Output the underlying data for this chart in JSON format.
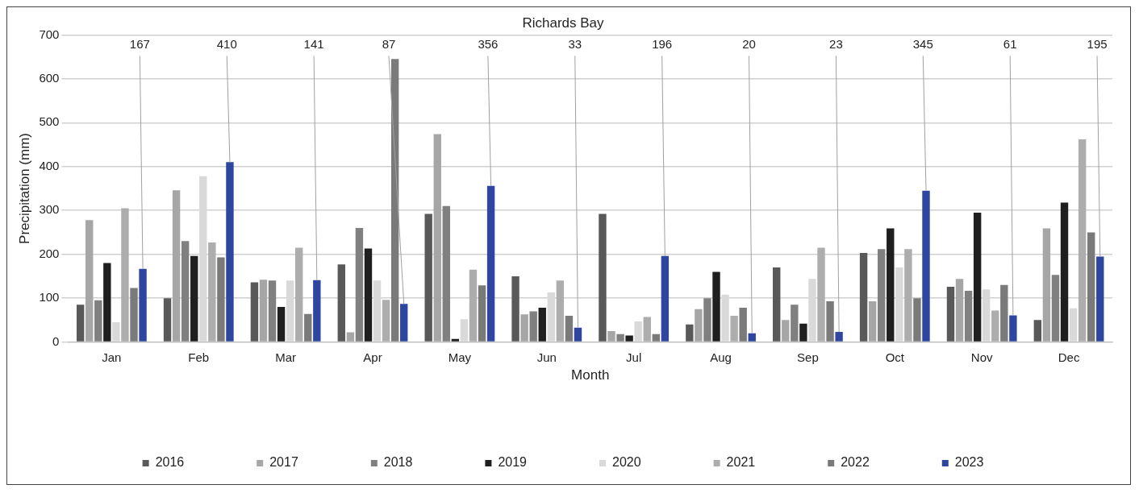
{
  "chart_data": {
    "type": "bar",
    "title": "Richards Bay",
    "xlabel": "Month",
    "ylabel": "Precipitation (mm)",
    "categories": [
      "Jan",
      "Feb",
      "Mar",
      "Apr",
      "May",
      "Jun",
      "Jul",
      "Aug",
      "Sep",
      "Oct",
      "Nov",
      "Dec"
    ],
    "series": [
      {
        "name": "2016",
        "color": "#595959",
        "values": [
          85,
          100,
          136,
          177,
          292,
          150,
          292,
          40,
          170,
          203,
          126,
          50
        ]
      },
      {
        "name": "2017",
        "color": "#a6a6a6",
        "values": [
          278,
          346,
          142,
          22,
          474,
          63,
          25,
          75,
          50,
          93,
          144,
          259
        ]
      },
      {
        "name": "2018",
        "color": "#808080",
        "values": [
          95,
          230,
          140,
          260,
          310,
          70,
          18,
          100,
          85,
          212,
          117,
          153
        ]
      },
      {
        "name": "2019",
        "color": "#1f1f1f",
        "values": [
          180,
          196,
          80,
          213,
          7,
          78,
          15,
          160,
          42,
          259,
          295,
          318
        ]
      },
      {
        "name": "2020",
        "color": "#d9d9d9",
        "values": [
          45,
          378,
          140,
          140,
          52,
          113,
          47,
          108,
          144,
          170,
          120,
          77
        ]
      },
      {
        "name": "2021",
        "color": "#adadad",
        "values": [
          305,
          227,
          215,
          96,
          165,
          140,
          57,
          60,
          215,
          212,
          72,
          462
        ]
      },
      {
        "name": "2022",
        "color": "#7a7a7a",
        "values": [
          123,
          193,
          64,
          645,
          129,
          60,
          18,
          78,
          93,
          100,
          130,
          250
        ]
      },
      {
        "name": "2023",
        "color": "#2e46a0",
        "values": [
          167,
          410,
          141,
          87,
          356,
          33,
          196,
          20,
          23,
          345,
          61,
          195
        ],
        "value_labels": [
          "167",
          "410",
          "141",
          "87",
          "356",
          "33",
          "196",
          "20",
          "23",
          "345",
          "61",
          "195"
        ]
      }
    ],
    "ylim": [
      0,
      700
    ],
    "yticks": [
      0,
      100,
      200,
      300,
      400,
      500,
      600,
      700
    ],
    "grid": "y",
    "legend": "bottom"
  }
}
